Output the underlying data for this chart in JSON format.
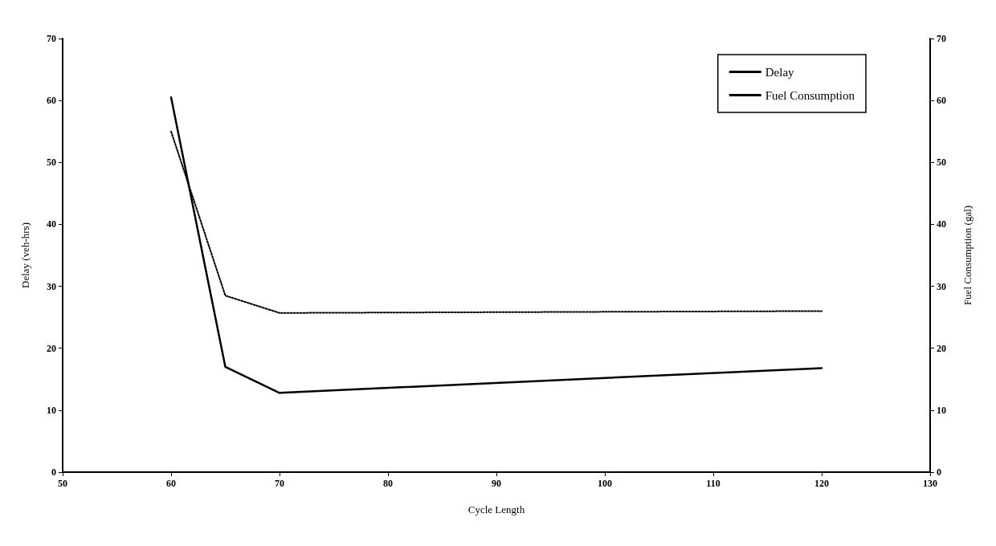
{
  "chart_data": {
    "type": "line",
    "xlabel": "Cycle Length",
    "ylabel": "Delay (veh-hrs)",
    "y2label": "Fuel Consumption (gal)",
    "xlim": [
      50,
      130
    ],
    "xticks": [
      50,
      60,
      70,
      80,
      90,
      100,
      110,
      120,
      130
    ],
    "ylim": [
      0,
      70
    ],
    "yticks": [
      0,
      10,
      20,
      30,
      40,
      50,
      60,
      70
    ],
    "y2lim": [
      0,
      70
    ],
    "y2ticks": [
      0,
      10,
      20,
      30,
      40,
      50,
      60,
      70
    ],
    "grid": false,
    "legend": "top right",
    "marker": "none",
    "series": [
      {
        "name": "Delay",
        "color": "#000000",
        "x": [
          60,
          65,
          70,
          120
        ],
        "values": [
          60.5,
          17,
          12.8,
          16.8
        ],
        "line_style": "solid"
      },
      {
        "name": "Fuel Consumption",
        "color": "#000000",
        "axis": "y2",
        "x": [
          60,
          65,
          70,
          120
        ],
        "values": [
          55,
          28.5,
          25.7,
          26
        ],
        "line_style": "dotted"
      }
    ]
  }
}
